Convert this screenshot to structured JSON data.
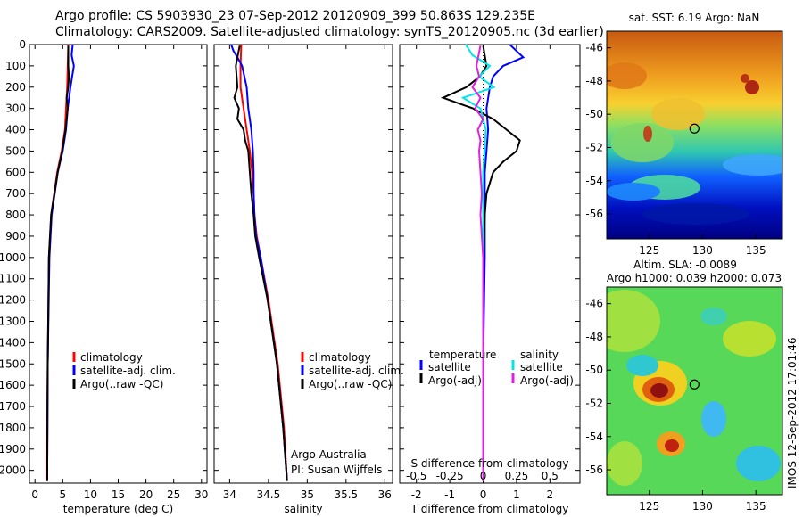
{
  "header": {
    "line1": "Argo profile: CS 5903930_23 07-Sep-2012 20120909_399 50.863S 129.235E",
    "line2": "Climatology: CARS2009. Satellite-adjusted climatology: synTS_20120905.nc (3d earlier)"
  },
  "colors": {
    "climatology": "#ff0000",
    "satellite": "#0000ff",
    "argo": "#000000",
    "satellite_salinity": "#00e5e5",
    "argo_salinity": "#e020e0"
  },
  "stamp": "IMOS 12-Sep-2012 17:01:46",
  "chart_data": [
    {
      "type": "line",
      "xlabel": "temperature (deg C)",
      "ylabel": "",
      "xlim": [
        -1,
        31
      ],
      "ylim": [
        2060,
        0
      ],
      "y_reversed": true,
      "xticks": [
        "0",
        "5",
        "10",
        "15",
        "20",
        "25",
        "30"
      ],
      "xtick_values": [
        0,
        5,
        10,
        15,
        20,
        25,
        30
      ],
      "yticks": [
        "0",
        "100",
        "200",
        "300",
        "400",
        "500",
        "600",
        "700",
        "800",
        "900",
        "1000",
        "1100",
        "1200",
        "1300",
        "1400",
        "1500",
        "1600",
        "1700",
        "1800",
        "1900",
        "2000"
      ],
      "ytick_values": [
        0,
        100,
        200,
        300,
        400,
        500,
        600,
        700,
        800,
        900,
        1000,
        1100,
        1200,
        1300,
        1400,
        1500,
        1600,
        1700,
        1800,
        1900,
        2000
      ],
      "legend": [
        "climatology",
        "satellite-adj. clim.",
        "Argo(..raw -QC)"
      ],
      "legend_position": "lower-left",
      "series": [
        {
          "name": "climatology",
          "color": "#ff0000",
          "depth": [
            0,
            100,
            200,
            300,
            400,
            500,
            600,
            800,
            1000,
            1500,
            2050
          ],
          "values": [
            6.0,
            5.9,
            5.8,
            5.6,
            5.4,
            4.8,
            4.0,
            2.9,
            2.5,
            2.3,
            2.1
          ]
        },
        {
          "name": "satellite-adj. clim.",
          "color": "#0000ff",
          "depth": [
            0,
            50,
            100,
            200,
            300,
            400,
            500,
            600,
            800,
            1000,
            1500,
            2050
          ],
          "values": [
            6.8,
            6.6,
            7.0,
            6.4,
            5.9,
            5.6,
            5.0,
            4.1,
            3.0,
            2.6,
            2.3,
            2.2
          ]
        },
        {
          "name": "Argo(..raw -QC)",
          "color": "#000000",
          "depth": [
            5,
            100,
            150,
            200,
            250,
            300,
            400,
            500,
            600,
            800,
            1000,
            1500,
            2050
          ],
          "values": [
            6.0,
            6.0,
            6.1,
            6.0,
            5.7,
            5.9,
            5.5,
            4.9,
            4.1,
            2.9,
            2.5,
            2.3,
            2.2
          ]
        }
      ]
    },
    {
      "type": "line",
      "xlabel": "salinity",
      "xlim": [
        33.8,
        36.1
      ],
      "ylim": [
        2060,
        0
      ],
      "y_reversed": true,
      "xticks": [
        "34",
        "34.5",
        "35",
        "35.5",
        "36"
      ],
      "xtick_values": [
        34,
        34.5,
        35,
        35.5,
        36
      ],
      "legend": [
        "climatology",
        "satellite-adj. clim.",
        "Argo(..raw -QC)"
      ],
      "legend_position": "lower-right",
      "annotation": [
        "Argo Australia",
        "PI: Susan Wijffels"
      ],
      "series": [
        {
          "name": "climatology",
          "color": "#ff0000",
          "depth": [
            0,
            100,
            200,
            300,
            400,
            500,
            600,
            700,
            800,
            900,
            1000,
            1200,
            1500,
            1800,
            2050
          ],
          "values": [
            34.15,
            34.14,
            34.14,
            34.18,
            34.22,
            34.26,
            34.29,
            34.31,
            34.32,
            34.35,
            34.4,
            34.5,
            34.62,
            34.7,
            34.74
          ]
        },
        {
          "name": "satellite-adj. clim.",
          "color": "#0000ff",
          "depth": [
            0,
            30,
            60,
            100,
            200,
            300,
            400,
            500,
            600,
            700,
            800,
            900,
            1000,
            1200,
            1500,
            1800,
            2050
          ],
          "values": [
            34.02,
            34.05,
            34.1,
            34.16,
            34.22,
            34.24,
            34.28,
            34.3,
            34.31,
            34.31,
            34.32,
            34.34,
            34.4,
            34.49,
            34.61,
            34.69,
            34.74
          ]
        },
        {
          "name": "Argo(..raw -QC)",
          "color": "#000000",
          "depth": [
            5,
            60,
            100,
            150,
            200,
            250,
            300,
            350,
            400,
            450,
            500,
            600,
            700,
            800,
            900,
            1000,
            1200,
            1500,
            1800,
            2050
          ],
          "values": [
            34.13,
            34.1,
            34.08,
            34.09,
            34.1,
            34.06,
            34.12,
            34.1,
            34.18,
            34.2,
            34.24,
            34.26,
            34.28,
            34.31,
            34.33,
            34.38,
            34.49,
            34.61,
            34.69,
            34.74
          ]
        }
      ]
    },
    {
      "type": "line",
      "xlabel": "T difference from climatology",
      "xlabel2": "S difference from climatology",
      "xlim": [
        -2.5,
        2.9
      ],
      "ylim": [
        2060,
        0
      ],
      "y_reversed": true,
      "xticks": [
        "-2",
        "-1",
        "0",
        "1",
        "2"
      ],
      "xtick_values": [
        -2,
        -1,
        0,
        1,
        2
      ],
      "xticks2": [
        "-0.5",
        "-0.25",
        "0",
        "0.25",
        "0.5"
      ],
      "xtick2_values": [
        -0.5,
        -0.25,
        0,
        0.25,
        0.5
      ],
      "legend_groups": [
        {
          "title": "temperature",
          "entries": [
            "satellite",
            "Argo(-adj)"
          ]
        },
        {
          "title": "salinity",
          "entries": [
            "satellite",
            "Argo(-adj)"
          ]
        }
      ],
      "series": [
        {
          "name": "temperature satellite",
          "color": "#0000ff",
          "depth": [
            0,
            30,
            60,
            100,
            150,
            200,
            300,
            400,
            500,
            600,
            800,
            1000,
            1500,
            2050
          ],
          "values": [
            0.8,
            1.0,
            1.2,
            0.6,
            0.3,
            0.2,
            0.1,
            0.15,
            0.1,
            0.05,
            0.05,
            0.05,
            0.0,
            0.0
          ]
        },
        {
          "name": "temperature Argo(-adj)",
          "color": "#000000",
          "depth": [
            5,
            100,
            150,
            200,
            250,
            300,
            350,
            400,
            450,
            500,
            550,
            600,
            700,
            800,
            1000,
            1500,
            2050
          ],
          "values": [
            0.0,
            0.1,
            -0.1,
            -0.5,
            -1.2,
            -0.3,
            0.3,
            0.7,
            1.1,
            1.0,
            0.6,
            0.3,
            0.1,
            0.05,
            0.0,
            0.0,
            0.0
          ]
        },
        {
          "name": "salinity satellite",
          "color": "#00e5e5",
          "depth": [
            0,
            50,
            100,
            150,
            200,
            250,
            300,
            400,
            600,
            800,
            1000,
            1200,
            1500,
            2050
          ],
          "values": [
            -0.13,
            -0.08,
            0.05,
            -0.03,
            0.08,
            -0.15,
            -0.02,
            0.02,
            0.0,
            0.0,
            0.0,
            0.0,
            0.0,
            0.0
          ]
        },
        {
          "name": "salinity Argo(-adj)",
          "color": "#e020e0",
          "depth": [
            5,
            100,
            150,
            200,
            250,
            300,
            350,
            400,
            450,
            500,
            600,
            700,
            800,
            900,
            1000,
            1200,
            1500,
            2050
          ],
          "values": [
            -0.02,
            -0.05,
            -0.03,
            -0.08,
            -0.02,
            -0.06,
            0.0,
            -0.04,
            -0.02,
            -0.03,
            -0.02,
            -0.01,
            -0.02,
            -0.01,
            0.0,
            0.0,
            0.0,
            0.0
          ]
        }
      ]
    },
    {
      "type": "heatmap",
      "title": "sat. SST: 6.19 Argo: NaN",
      "xlim": [
        121,
        137.5
      ],
      "ylim": [
        -57.5,
        -45
      ],
      "xticks": [
        "125",
        "130",
        "135"
      ],
      "xtick_values": [
        125,
        130,
        135
      ],
      "yticks": [
        "-46",
        "-48",
        "-50",
        "-52",
        "-54",
        "-56"
      ],
      "ytick_values": [
        -46,
        -48,
        -50,
        -52,
        -54,
        -56
      ],
      "colormap": "jet",
      "gradient": "warm (red/orange) in north, cold (dark blue) in south",
      "marker": {
        "lon": 129.235,
        "lat": -50.863
      }
    },
    {
      "type": "heatmap",
      "title": "Altim. SLA: -0.0089",
      "subtitle": "Argo h1000: 0.039 h2000: 0.073",
      "xlim": [
        121,
        137.5
      ],
      "ylim": [
        -57.5,
        -45
      ],
      "xticks": [
        "125",
        "130",
        "135"
      ],
      "xtick_values": [
        125,
        130,
        135
      ],
      "yticks": [
        "-46",
        "-48",
        "-50",
        "-52",
        "-54",
        "-56"
      ],
      "ytick_values": [
        -46,
        -48,
        -50,
        -52,
        -54,
        -56
      ],
      "colormap": "jet",
      "marker": {
        "lon": 129.235,
        "lat": -50.863
      }
    }
  ]
}
